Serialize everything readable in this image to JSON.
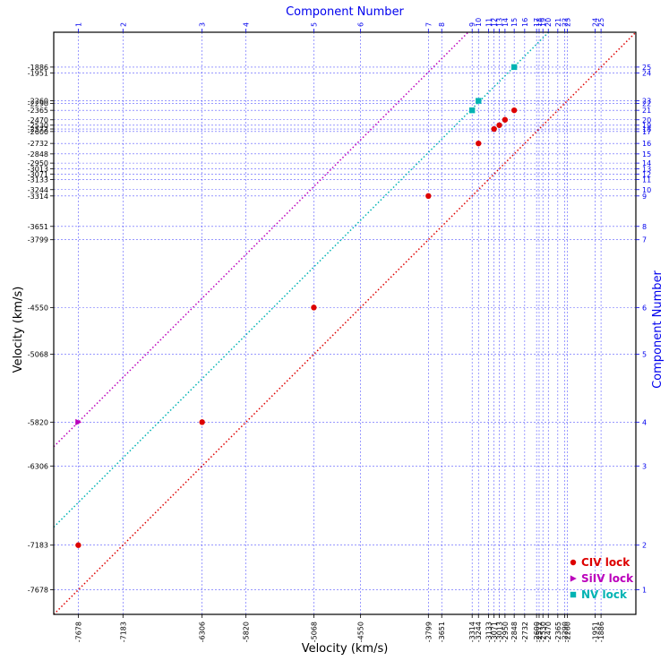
{
  "chart_data": {
    "type": "scatter",
    "title": "Component Number",
    "xlabel": "Velocity (km/s)",
    "ylabel": "Velocity (km/s)",
    "y2label": "Component Number",
    "x_title_top": "Component Number",
    "velocities": [
      -7678,
      -7183,
      -6306,
      -5820,
      -5068,
      -4550,
      -3799,
      -3651,
      -3314,
      -3244,
      -3133,
      -3071,
      -3013,
      -2950,
      -2848,
      -2732,
      -2600,
      -2572,
      -2530,
      -2470,
      -2365,
      -2290,
      -2260,
      -1951,
      -1886
    ],
    "components": [
      1,
      2,
      3,
      4,
      5,
      6,
      7,
      8,
      9,
      10,
      11,
      12,
      13,
      14,
      15,
      16,
      17,
      18,
      19,
      20,
      21,
      22,
      23,
      24,
      25
    ],
    "x_range": [
      -7950,
      -1500
    ],
    "y_range": [
      -7950,
      -1500
    ],
    "series": [
      {
        "name": "CIV lock",
        "color": "#dd0000",
        "marker": "circle",
        "offset": 0,
        "points": [
          [
            -7678,
            -7183
          ],
          [
            -6306,
            -5820
          ],
          [
            -5068,
            -4550
          ],
          [
            -3799,
            -3314
          ],
          [
            -3244,
            -2732
          ],
          [
            -3071,
            -2572
          ],
          [
            -3013,
            -2530
          ],
          [
            -2950,
            -2470
          ],
          [
            -2848,
            -2365
          ]
        ]
      },
      {
        "name": "SiIV lock",
        "color": "#bb00bb",
        "marker": "triangle",
        "offset": 1858,
        "points": [
          [
            -7678,
            -5820
          ]
        ]
      },
      {
        "name": "NV lock",
        "color": "#00b3b3",
        "marker": "square",
        "offset": 967,
        "points": [
          [
            -3314,
            -2365
          ],
          [
            -3244,
            -2260
          ],
          [
            -2848,
            -1886
          ]
        ]
      }
    ],
    "grid": true,
    "legend_position": "lower-right"
  }
}
